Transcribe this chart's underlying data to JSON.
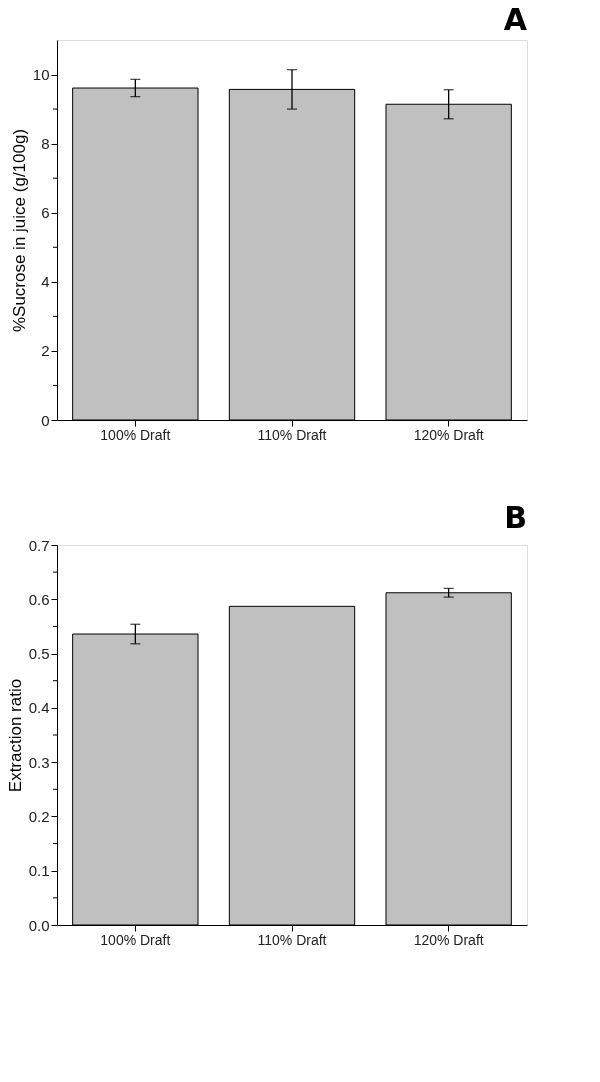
{
  "chart_data": [
    {
      "type": "bar",
      "title": "A",
      "ylabel": "%Sucrose in juice (g/100g)",
      "categories": [
        "100% Draft",
        "110% Draft",
        "120% Draft"
      ],
      "series": [
        {
          "color": "#c0c0c0",
          "values": [
            9.61,
            9.57,
            9.14
          ],
          "errors": [
            0.25,
            0.57,
            0.42
          ]
        }
      ],
      "ylim": [
        0,
        11
      ],
      "yticks": [
        0,
        {
          "value": 1,
          "label": null
        },
        2,
        {
          "value": 3,
          "label": null
        },
        4,
        {
          "value": 5,
          "label": null
        },
        6,
        {
          "value": 7,
          "label": null
        },
        8,
        {
          "value": 9,
          "label": null
        },
        10
      ],
      "grid": false
    },
    {
      "type": "bar",
      "title": "B",
      "ylabel": "Extraction ratio",
      "categories": [
        "100% Draft",
        "110% Draft",
        "120% Draft"
      ],
      "series": [
        {
          "color": "#c0c0c0",
          "values": [
            0.536,
            0.587,
            0.612
          ],
          "errors": [
            0.018,
            null,
            0.008
          ]
        }
      ],
      "ylim": [
        0,
        0.7
      ],
      "yticks": [
        {
          "value": 0,
          "label": "0.0"
        },
        {
          "value": 0.05,
          "label": null
        },
        0.1,
        {
          "value": 0.15,
          "label": null
        },
        0.2,
        {
          "value": 0.25,
          "label": null
        },
        0.3,
        {
          "value": 0.35,
          "label": null
        },
        0.4,
        {
          "value": 0.45,
          "label": null
        },
        0.5,
        {
          "value": 0.55,
          "label": null
        },
        0.6,
        {
          "value": 0.65,
          "label": null
        },
        0.7
      ],
      "grid": false
    }
  ]
}
